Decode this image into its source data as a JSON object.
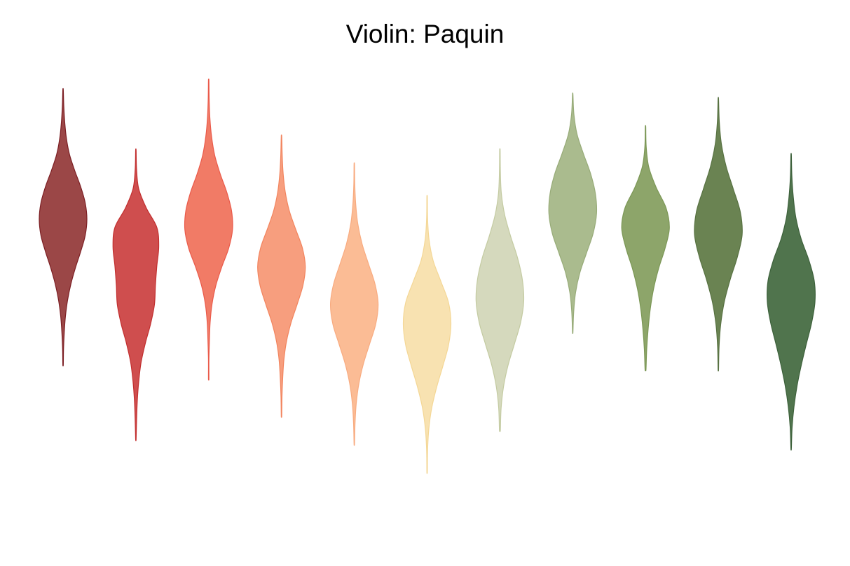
{
  "chart_data": {
    "type": "violin",
    "title": "Violin: Paquin",
    "xlabel": "",
    "ylabel": "",
    "axes_visible": false,
    "grid": false,
    "legend": "none",
    "ylim": [
      0,
      100
    ],
    "series": [
      {
        "color": "#8f2b2b",
        "fill": "#9b4747",
        "stroke": "#7c1f24",
        "min": 36,
        "max": 95,
        "median": 65,
        "widths": [
          0.01,
          0.03,
          0.07,
          0.14,
          0.27,
          0.49,
          0.74,
          0.93,
          1.0,
          0.93,
          0.74,
          0.52,
          0.33,
          0.19,
          0.1,
          0.05,
          0.02,
          0.01
        ]
      },
      {
        "color": "#c83a3a",
        "fill": "#cf4e4e",
        "stroke": "#c22f2f",
        "min": 20,
        "max": 82,
        "median": 45,
        "widths": [
          0.01,
          0.03,
          0.12,
          0.44,
          0.88,
          0.96,
          0.88,
          0.82,
          0.78,
          0.62,
          0.4,
          0.22,
          0.12,
          0.06,
          0.03,
          0.01
        ]
      },
      {
        "color": "#f0705f",
        "fill": "#f17b66",
        "stroke": "#ea5a4a",
        "min": 33,
        "max": 97,
        "median": 68,
        "widths": [
          0.01,
          0.02,
          0.05,
          0.12,
          0.25,
          0.48,
          0.76,
          0.96,
          1.0,
          0.84,
          0.55,
          0.3,
          0.14,
          0.06,
          0.03,
          0.01,
          0.01
        ]
      },
      {
        "color": "#f69878",
        "fill": "#f79e7e",
        "stroke": "#f2845e",
        "min": 25,
        "max": 85,
        "median": 53,
        "widths": [
          0.01,
          0.03,
          0.07,
          0.16,
          0.33,
          0.6,
          0.88,
          1.0,
          0.9,
          0.66,
          0.4,
          0.21,
          0.1,
          0.05,
          0.02,
          0.01
        ]
      },
      {
        "color": "#fbbb93",
        "fill": "#fbbc95",
        "stroke": "#f8ab80",
        "min": 19,
        "max": 79,
        "median": 50,
        "widths": [
          0.01,
          0.02,
          0.06,
          0.15,
          0.33,
          0.6,
          0.87,
          1.0,
          0.9,
          0.64,
          0.38,
          0.19,
          0.08,
          0.03,
          0.01
        ]
      },
      {
        "color": "#f7e1ae",
        "fill": "#f8e2b1",
        "stroke": "#f4d796",
        "min": 13,
        "max": 72,
        "median": 42,
        "widths": [
          0.01,
          0.02,
          0.08,
          0.25,
          0.58,
          0.9,
          1.0,
          0.9,
          0.66,
          0.4,
          0.19,
          0.07,
          0.02,
          0.01
        ]
      },
      {
        "color": "#d3d8b8",
        "fill": "#d5d9bd",
        "stroke": "#c4cba2",
        "min": 22,
        "max": 82,
        "median": 58,
        "widths": [
          0.01,
          0.02,
          0.06,
          0.2,
          0.45,
          0.74,
          0.94,
          1.0,
          0.87,
          0.61,
          0.34,
          0.15,
          0.05,
          0.02
        ]
      },
      {
        "color": "#a8b88b",
        "fill": "#aabb8e",
        "stroke": "#97ab78",
        "min": 43,
        "max": 94,
        "median": 74,
        "widths": [
          0.01,
          0.05,
          0.18,
          0.45,
          0.75,
          0.95,
          1.0,
          0.86,
          0.58,
          0.3,
          0.12,
          0.04,
          0.01
        ]
      },
      {
        "color": "#8aa466",
        "fill": "#8da56a",
        "stroke": "#7b9755",
        "min": 35,
        "max": 87,
        "median": 56,
        "widths": [
          0.01,
          0.03,
          0.14,
          0.45,
          0.86,
          1.0,
          0.82,
          0.55,
          0.34,
          0.2,
          0.11,
          0.05,
          0.02
        ]
      },
      {
        "color": "#667f4e",
        "fill": "#6a8352",
        "stroke": "#587242",
        "min": 35,
        "max": 93,
        "median": 63,
        "widths": [
          0.01,
          0.04,
          0.13,
          0.33,
          0.63,
          0.92,
          1.0,
          0.8,
          0.5,
          0.25,
          0.1,
          0.03,
          0.01
        ]
      },
      {
        "color": "#4c714a",
        "fill": "#50744d",
        "stroke": "#3d613b",
        "min": 18,
        "max": 81,
        "median": 52,
        "widths": [
          0.01,
          0.03,
          0.09,
          0.2,
          0.42,
          0.74,
          0.97,
          1.0,
          0.86,
          0.64,
          0.43,
          0.25,
          0.12,
          0.04,
          0.01
        ]
      }
    ]
  }
}
